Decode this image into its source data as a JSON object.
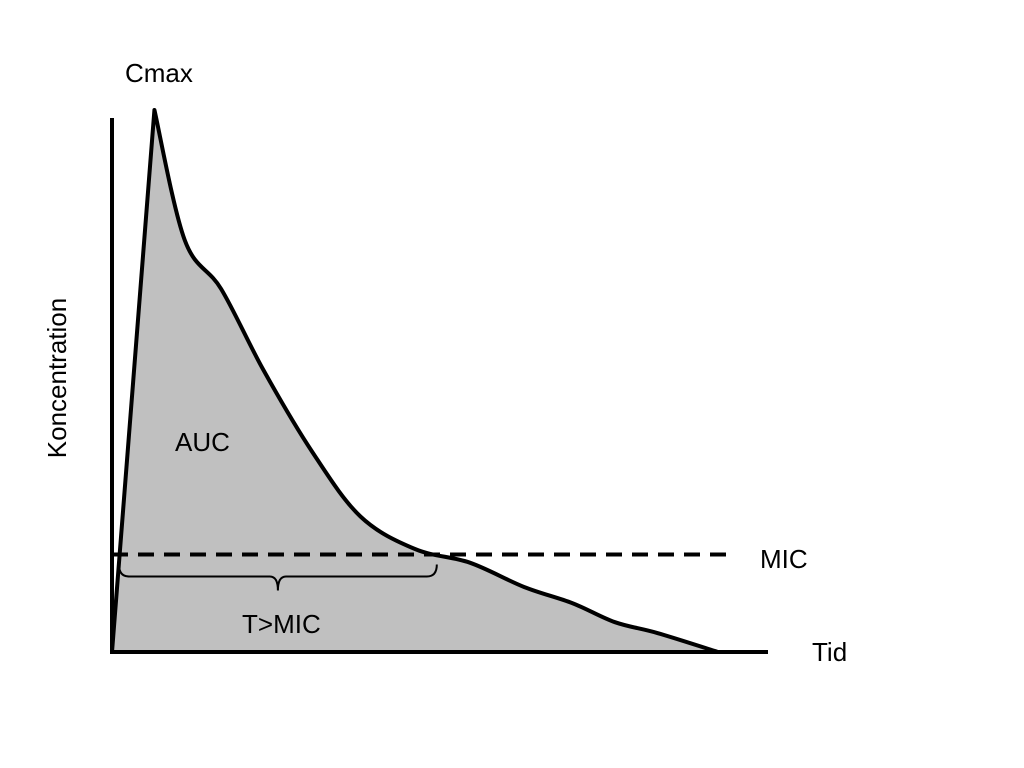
{
  "chart_data": {
    "type": "area",
    "title": "",
    "xlabel": "Tid",
    "ylabel": "Koncentration",
    "grid": false,
    "xlim": [
      0,
      10
    ],
    "ylim": [
      0,
      10
    ],
    "series": [
      {
        "x": [
          0.0,
          0.7,
          1.2,
          1.8,
          2.5,
          3.3,
          4.1,
          5.0,
          5.9,
          6.8,
          7.6,
          8.3,
          9.0,
          10.0
        ],
        "values": [
          0.0,
          10.0,
          7.6,
          6.7,
          5.2,
          3.7,
          2.5,
          1.9,
          1.65,
          1.2,
          0.9,
          0.55,
          0.35,
          0.0
        ]
      }
    ],
    "fill_color": "#c0c0c0",
    "line_color": "#000000",
    "threshold": {
      "label": "MIC",
      "value": 1.8,
      "style": "dashed"
    },
    "annotations": {
      "peak_label": "Cmax",
      "area_label": "AUC",
      "interval_label": "T>MIC"
    }
  }
}
